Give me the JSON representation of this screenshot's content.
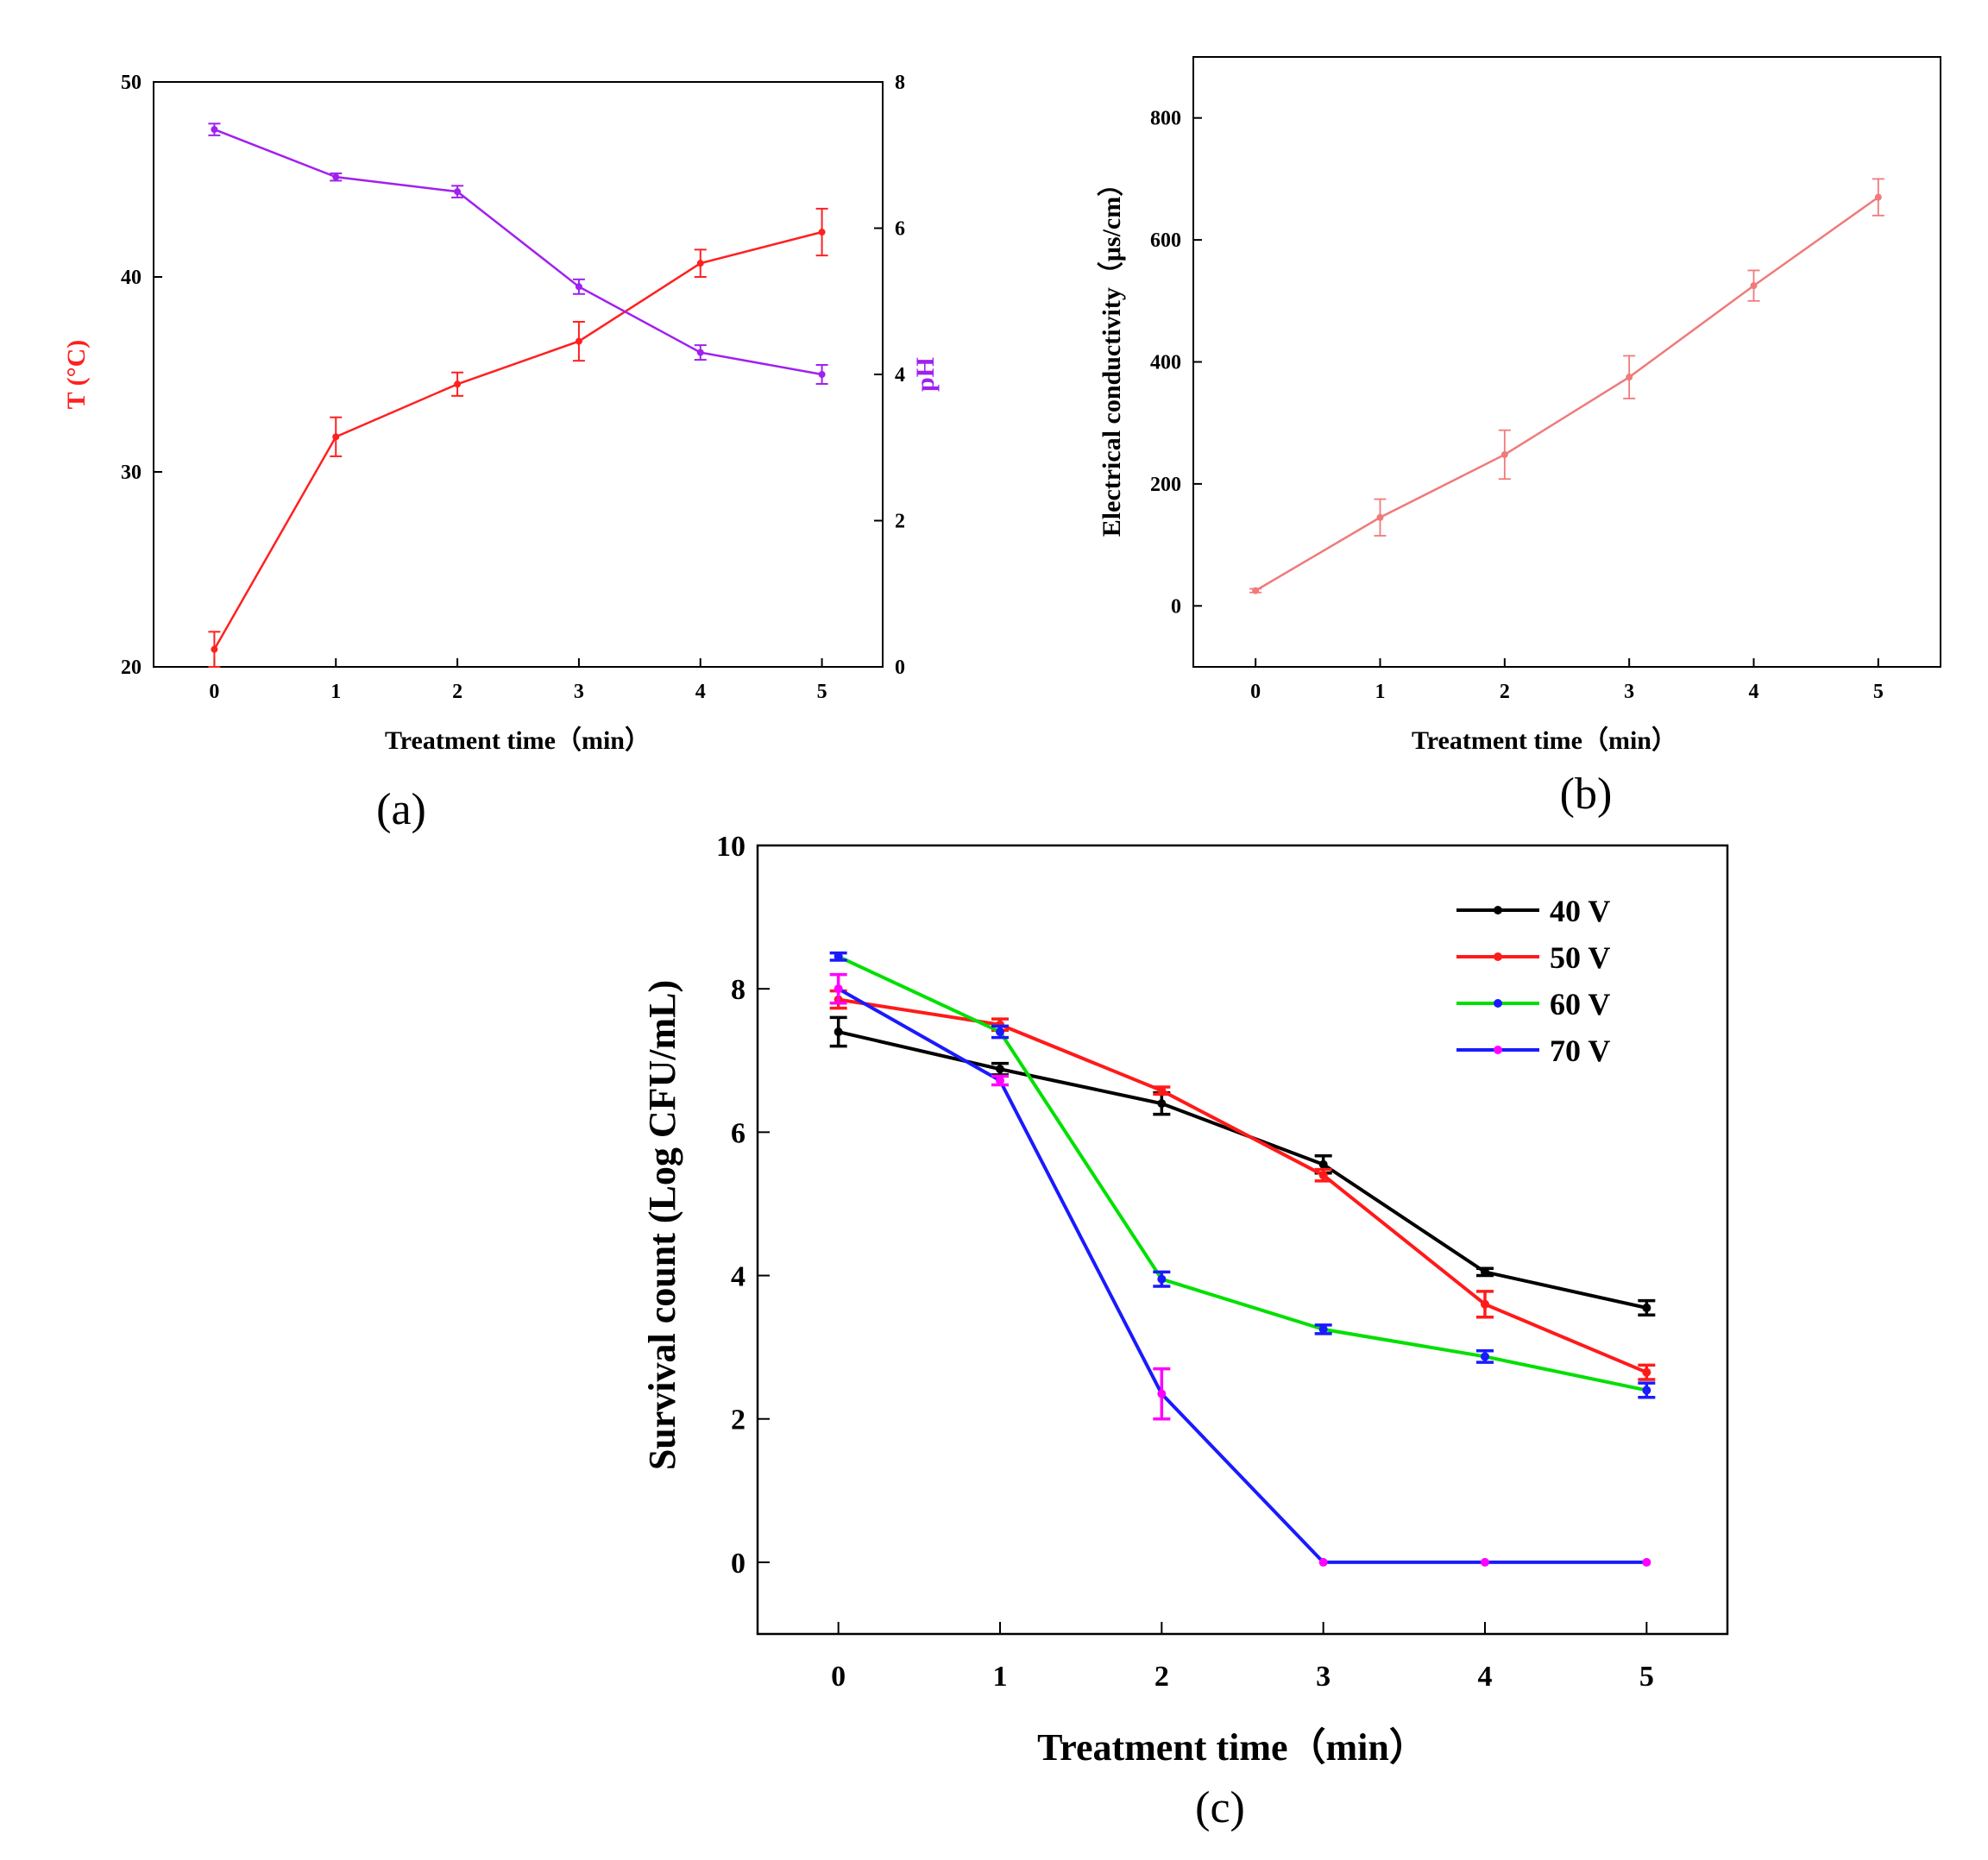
{
  "chart_data": [
    {
      "type": "line",
      "panel_label": "(a)",
      "xlabel": "Treatment time（min）",
      "ylabel_left": "T (°C)",
      "ylabel_right": "pH",
      "x": [
        0,
        1,
        2,
        3,
        4,
        5
      ],
      "xlim": [
        -0.5,
        5.5
      ],
      "ylim_left": [
        20,
        50
      ],
      "ylim_right": [
        0,
        8
      ],
      "yticks_left": [
        20,
        30,
        40,
        50
      ],
      "yticks_right": [
        0,
        2,
        4,
        6,
        8
      ],
      "series": [
        {
          "axis": "left",
          "color": "#ff2020",
          "values": [
            20.9,
            31.8,
            34.5,
            36.7,
            40.7,
            42.3
          ],
          "errors": [
            0.9,
            1.0,
            0.6,
            1.0,
            0.7,
            1.2
          ]
        },
        {
          "axis": "right",
          "color": "#a020f0",
          "values": [
            7.35,
            6.7,
            6.5,
            5.2,
            4.3,
            4.0
          ],
          "errors": [
            0.08,
            0.05,
            0.08,
            0.1,
            0.1,
            0.13
          ]
        }
      ]
    },
    {
      "type": "line",
      "panel_label": "(b)",
      "xlabel": "Treatment time（min）",
      "ylabel": "Electrical conductivity（μs/cm）",
      "x": [
        0,
        1,
        2,
        3,
        4,
        5
      ],
      "xlim": [
        -0.5,
        5.5
      ],
      "ylim": [
        -100,
        900
      ],
      "yticks": [
        0,
        200,
        400,
        600,
        800
      ],
      "series": [
        {
          "color": "#f07a7a",
          "values": [
            25,
            145,
            248,
            375,
            525,
            670
          ],
          "errors": [
            3,
            30,
            40,
            35,
            25,
            30
          ]
        }
      ]
    },
    {
      "type": "line",
      "panel_label": "(c)",
      "xlabel": "Treatment time（min）",
      "ylabel": "Survival count (Log CFU/mL)",
      "x": [
        0,
        1,
        2,
        3,
        4,
        5
      ],
      "xlim": [
        -0.5,
        5.5
      ],
      "ylim": [
        -1,
        10
      ],
      "yticks": [
        0,
        2,
        4,
        6,
        8,
        10
      ],
      "legend_position": "top-right",
      "series": [
        {
          "name": "40 V",
          "color": "#000000",
          "marker_color": "#000000",
          "values": [
            7.4,
            6.88,
            6.4,
            5.55,
            4.05,
            3.55
          ],
          "errors": [
            0.2,
            0.08,
            0.15,
            0.12,
            0.05,
            0.1
          ]
        },
        {
          "name": "50 V",
          "color": "#ff1a1a",
          "marker_color": "#ff1a1a",
          "values": [
            7.85,
            7.5,
            6.58,
            5.4,
            3.6,
            2.65
          ],
          "errors": [
            0.12,
            0.08,
            0.05,
            0.08,
            0.18,
            0.1
          ]
        },
        {
          "name": "60 V",
          "color": "#00e000",
          "marker_color": "#1a1aff",
          "values": [
            8.45,
            7.4,
            3.95,
            3.25,
            2.87,
            2.4
          ],
          "errors": [
            0.05,
            0.08,
            0.1,
            0.06,
            0.08,
            0.1
          ]
        },
        {
          "name": "70 V",
          "color": "#1a1aff",
          "marker_color": "#ff00ff",
          "values": [
            8.0,
            6.72,
            2.35,
            0.0,
            0.0,
            0.0
          ],
          "errors": [
            0.2,
            0.06,
            0.35,
            0.0,
            0.0,
            0.0
          ]
        }
      ]
    }
  ]
}
